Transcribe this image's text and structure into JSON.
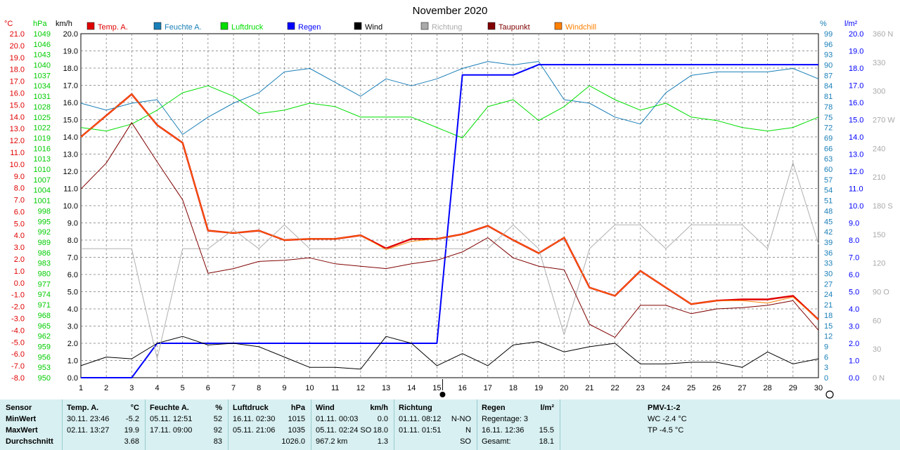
{
  "chart_data": {
    "type": "line",
    "title": "November 2020",
    "x": [
      1,
      2,
      3,
      4,
      5,
      6,
      7,
      8,
      9,
      10,
      11,
      12,
      13,
      14,
      15,
      16,
      17,
      18,
      19,
      20,
      21,
      22,
      23,
      24,
      25,
      26,
      27,
      28,
      29,
      30
    ],
    "xlim": [
      1,
      30
    ],
    "axes": {
      "temp": {
        "unit": "°C",
        "range": [
          -8,
          21
        ],
        "ticks": [
          "21.0",
          "20.0",
          "19.0",
          "18.0",
          "17.0",
          "16.0",
          "15.0",
          "14.0",
          "13.0",
          "12.0",
          "11.0",
          "10.0",
          "9.0",
          "8.0",
          "7.0",
          "6.0",
          "5.0",
          "4.0",
          "3.0",
          "2.0",
          "1.0",
          "0.0",
          "-1.0",
          "-2.0",
          "-3.0",
          "-4.0",
          "-5.0",
          "-6.0",
          "-7.0",
          "-8.0"
        ],
        "color": "#e00000"
      },
      "press": {
        "unit": "hPa",
        "range": [
          950,
          1049
        ],
        "ticks": [
          "1049",
          "1046",
          "1043",
          "1040",
          "1037",
          "1034",
          "1031",
          "1028",
          "1025",
          "1022",
          "1019",
          "1016",
          "1013",
          "1010",
          "1007",
          "1004",
          "1001",
          "998",
          "995",
          "992",
          "989",
          "986",
          "983",
          "980",
          "977",
          "974",
          "971",
          "968",
          "965",
          "962",
          "959",
          "956",
          "953",
          "950"
        ],
        "color": "#00cc00"
      },
      "wind": {
        "unit": "km/h",
        "range": [
          0,
          20
        ],
        "ticks": [
          "20.0",
          "19.0",
          "18.0",
          "17.0",
          "16.0",
          "15.0",
          "14.0",
          "13.0",
          "12.0",
          "11.0",
          "10.0",
          "9.0",
          "8.0",
          "7.0",
          "6.0",
          "5.0",
          "4.0",
          "3.0",
          "2.0",
          "1.0",
          "0.0"
        ],
        "color": "#000000"
      },
      "hum": {
        "unit": "%",
        "range": [
          0,
          99
        ],
        "ticks": [
          "99",
          "96",
          "93",
          "90",
          "87",
          "84",
          "81",
          "78",
          "75",
          "72",
          "69",
          "66",
          "63",
          "60",
          "57",
          "54",
          "51",
          "48",
          "45",
          "42",
          "39",
          "36",
          "33",
          "30",
          "27",
          "24",
          "21",
          "18",
          "15",
          "12",
          "9",
          "6",
          "3",
          "0"
        ],
        "color": "#1a7fb8"
      },
      "rain": {
        "unit": "l/m²",
        "range": [
          0,
          20
        ],
        "ticks": [
          "20.0",
          "19.0",
          "18.0",
          "17.0",
          "16.0",
          "15.0",
          "14.0",
          "13.0",
          "12.0",
          "11.0",
          "10.0",
          "9.0",
          "8.0",
          "7.0",
          "6.0",
          "5.0",
          "4.0",
          "3.0",
          "2.0",
          "1.0",
          "0.0"
        ],
        "color": "#0000ff"
      },
      "dir": {
        "unit": "360 N",
        "range": [
          0,
          360
        ],
        "ticks": [
          {
            "v": 360,
            "t": "360 N"
          },
          {
            "v": 330,
            "t": "330"
          },
          {
            "v": 300,
            "t": "300"
          },
          {
            "v": 270,
            "t": "270 W"
          },
          {
            "v": 240,
            "t": "240"
          },
          {
            "v": 210,
            "t": "210"
          },
          {
            "v": 180,
            "t": "180 S"
          },
          {
            "v": 150,
            "t": "150"
          },
          {
            "v": 120,
            "t": "120"
          },
          {
            "v": 90,
            "t": "90 O"
          },
          {
            "v": 60,
            "t": "60"
          },
          {
            "v": 30,
            "t": "30"
          },
          {
            "v": 0,
            "t": "0 N"
          }
        ],
        "color": "#aaaaaa"
      }
    },
    "series": [
      {
        "name": "Temp. A.",
        "axis": "temp",
        "color": "#e00000",
        "width": 2.4,
        "values": [
          12.3,
          14.1,
          15.9,
          13.3,
          11.8,
          4.4,
          4.2,
          4.4,
          3.6,
          3.7,
          3.7,
          4.0,
          2.9,
          3.7,
          3.7,
          4.1,
          4.8,
          3.6,
          2.5,
          3.8,
          -0.4,
          -1.1,
          1.0,
          -0.4,
          -1.8,
          -1.5,
          -1.4,
          -1.4,
          -1.1,
          -3.1
        ]
      },
      {
        "name": "Feuchte A.",
        "axis": "hum",
        "color": "#1a7fb8",
        "width": 1,
        "values": [
          79,
          77,
          79,
          80,
          70,
          75,
          79,
          82,
          88,
          89,
          85,
          81,
          86,
          84,
          86,
          89,
          91,
          90,
          91,
          80,
          79,
          75,
          73,
          82,
          87,
          88,
          88,
          88,
          89,
          86
        ]
      },
      {
        "name": "Luftdruck",
        "axis": "press",
        "color": "#00dd00",
        "width": 1,
        "values": [
          1022,
          1021,
          1023,
          1027,
          1032,
          1034,
          1031,
          1026,
          1027,
          1029,
          1028,
          1025,
          1025,
          1025,
          1022,
          1019,
          1028,
          1030,
          1024,
          1028,
          1034,
          1030,
          1027,
          1029,
          1025,
          1024,
          1022,
          1021,
          1022,
          1025
        ]
      },
      {
        "name": "Regen",
        "axis": "rain",
        "color": "#0000ff",
        "width": 2,
        "points": [
          [
            1,
            0
          ],
          [
            3,
            0
          ],
          [
            4,
            2.0
          ],
          [
            15,
            2.0
          ],
          [
            16,
            17.6
          ],
          [
            18,
            17.6
          ],
          [
            19,
            18.2
          ],
          [
            30,
            18.2
          ]
        ]
      },
      {
        "name": "Wind",
        "axis": "wind",
        "color": "#000000",
        "width": 1,
        "values": [
          0.7,
          1.2,
          1.1,
          2.0,
          2.4,
          1.9,
          2.0,
          1.8,
          1.2,
          0.6,
          0.6,
          0.5,
          2.4,
          2.0,
          0.7,
          1.4,
          0.7,
          1.9,
          2.1,
          1.5,
          1.8,
          2.0,
          0.8,
          0.8,
          0.9,
          0.9,
          0.6,
          1.5,
          0.8,
          1.1
        ]
      },
      {
        "name": "Richtung",
        "axis": "dir",
        "color": "#b0b0b0",
        "width": 1,
        "values": [
          135,
          135,
          135,
          20,
          135,
          135,
          155,
          135,
          160,
          135,
          135,
          135,
          135,
          135,
          135,
          135,
          135,
          160,
          135,
          45,
          135,
          160,
          160,
          135,
          160,
          160,
          160,
          135,
          225,
          140
        ]
      },
      {
        "name": "Taupunkt",
        "axis": "temp",
        "color": "#800000",
        "width": 1,
        "values": [
          7.9,
          10.1,
          13.5,
          10.2,
          7.0,
          0.8,
          1.2,
          1.8,
          1.9,
          2.1,
          1.6,
          1.4,
          1.2,
          1.6,
          1.9,
          2.6,
          3.8,
          2.1,
          1.4,
          1.1,
          -3.5,
          -4.6,
          -1.9,
          -1.9,
          -2.6,
          -2.2,
          -2.1,
          -1.9,
          -1.5,
          -4.0
        ]
      },
      {
        "name": "Windchill",
        "axis": "temp",
        "color": "#ff8000",
        "width": 1,
        "values": [
          12.3,
          14.1,
          15.9,
          13.3,
          11.8,
          4.4,
          4.2,
          4.4,
          3.6,
          3.7,
          3.7,
          4.0,
          2.8,
          3.5,
          3.7,
          4.1,
          4.8,
          3.6,
          2.5,
          3.8,
          -0.4,
          -1.1,
          1.0,
          -0.4,
          -1.8,
          -1.5,
          -1.5,
          -1.7,
          -1.2,
          -3.1
        ]
      }
    ],
    "legend": [
      {
        "label": "Temp. A.",
        "color": "#e00000"
      },
      {
        "label": "Feuchte A.",
        "color": "#1a7fb8"
      },
      {
        "label": "Luftdruck",
        "color": "#00dd00"
      },
      {
        "label": "Regen",
        "color": "#0000ff"
      },
      {
        "label": "Wind",
        "color": "#000000"
      },
      {
        "label": "Richtung",
        "color": "#aaaaaa"
      },
      {
        "label": "Taupunkt",
        "color": "#800000"
      },
      {
        "label": "Windchill",
        "color": "#ff8000"
      }
    ],
    "grid": true,
    "legend_position": "top"
  },
  "stats": {
    "labels": {
      "sensor": "Sensor",
      "min": "MinWert",
      "max": "MaxWert",
      "avg": "Durchschnitt"
    },
    "temp": {
      "title": "Temp. A.",
      "unit": "°C",
      "min_time": "30.11.  23:46",
      "min": "-5.2",
      "max_time": "02.11.  13:27",
      "max": "19.9",
      "avg": "3.68"
    },
    "hum": {
      "title": "Feuchte A.",
      "unit": "%",
      "min_time": "05.11.  12:51",
      "min": "52",
      "max_time": "17.11.  09:00",
      "max": "92",
      "avg": "83"
    },
    "press": {
      "title": "Luftdruck",
      "unit": "hPa",
      "min_time": "16.11.  02:30",
      "min": "1015",
      "max_time": "05.11.  21:06",
      "max": "1035",
      "avg": "1026.0"
    },
    "wind": {
      "title": "Wind",
      "unit": "km/h",
      "min_time": "01.11.  00:03",
      "min": "0.0",
      "max_time": "05.11.  02:24 SO",
      "max": "18.0",
      "avg_extra": "967.2 km",
      "avg": "1.3"
    },
    "dir": {
      "title": "Richtung",
      "min_time": "01.11.  08:12",
      "min": "N-NO",
      "max_time": "01.11.  01:51",
      "max": "N",
      "avg": "SO"
    },
    "rain": {
      "title": "Regen",
      "unit": "l/m²",
      "row1": "Regentage: 3",
      "row2_time": "16.11.  12:36",
      "row2": "15.5",
      "row3_label": "Gesamt:",
      "row3": "18.1"
    },
    "pmv": {
      "title": "PMV-1:-2",
      "wc": "WC -2.4 °C",
      "tp": "TP -4.5 °C"
    }
  }
}
